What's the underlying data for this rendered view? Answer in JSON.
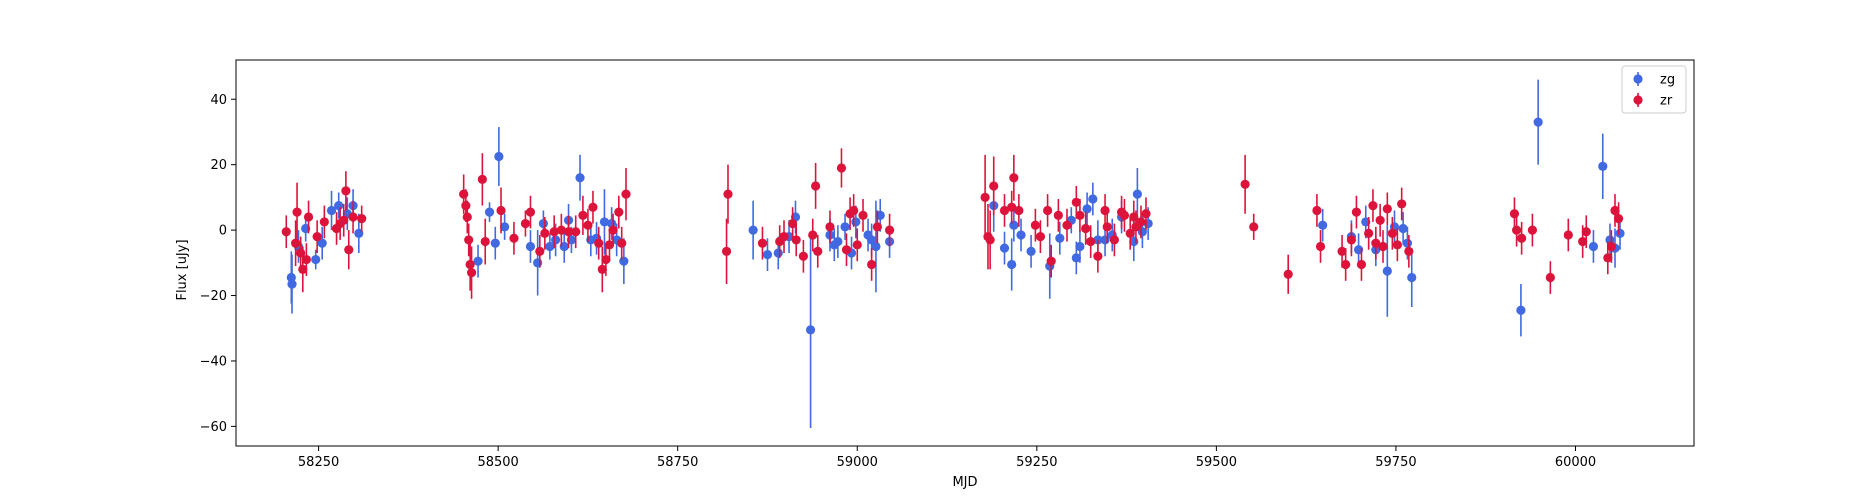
{
  "chart_data": {
    "type": "scatter",
    "xlabel": "MJD",
    "ylabel": "Flux [uJy]",
    "xlim": [
      58135,
      60165
    ],
    "ylim": [
      -66,
      52
    ],
    "xticks": [
      58250,
      58500,
      58750,
      59000,
      59250,
      59500,
      59750,
      60000
    ],
    "yticks": [
      -60,
      -40,
      -20,
      0,
      20,
      40
    ],
    "legend_position": "top-right",
    "grid": false,
    "error_bars": true,
    "series": [
      {
        "name": "zg",
        "color": "#4169e1",
        "points": [
          [
            58212,
            -14.5,
            8
          ],
          [
            58213,
            -16.5,
            9
          ],
          [
            58222,
            -5,
            5
          ],
          [
            58232,
            0.5,
            4
          ],
          [
            58246,
            -9,
            3
          ],
          [
            58255,
            -4,
            5
          ],
          [
            58268,
            6,
            6
          ],
          [
            58278,
            7.5,
            4
          ],
          [
            58290,
            5,
            5
          ],
          [
            58298,
            7.5,
            5
          ],
          [
            58306,
            -1,
            6
          ],
          [
            58472,
            -9.5,
            5
          ],
          [
            58488,
            5.5,
            3
          ],
          [
            58496,
            -4,
            5
          ],
          [
            58501,
            22.5,
            9
          ],
          [
            58509,
            1,
            4
          ],
          [
            58545,
            -5,
            5
          ],
          [
            58555,
            -10,
            10
          ],
          [
            58563,
            2,
            4
          ],
          [
            58572,
            -5,
            4
          ],
          [
            58580,
            -3,
            5
          ],
          [
            58592,
            -5,
            5
          ],
          [
            58598,
            3,
            5
          ],
          [
            58602,
            -3,
            4
          ],
          [
            58614,
            16,
            7
          ],
          [
            58629,
            -3,
            5
          ],
          [
            58637,
            -2.5,
            5
          ],
          [
            58648,
            2.5,
            10
          ],
          [
            58658,
            2,
            5
          ],
          [
            58665,
            -3,
            5
          ],
          [
            58675,
            -9.5,
            7
          ],
          [
            58855,
            0,
            9
          ],
          [
            58875,
            -7.5,
            5
          ],
          [
            58890,
            -7,
            5
          ],
          [
            58905,
            -2,
            5
          ],
          [
            58914,
            4,
            5
          ],
          [
            58935,
            -30.5,
            30
          ],
          [
            58962,
            -1.5,
            5
          ],
          [
            58968,
            -4.5,
            5
          ],
          [
            58973,
            -3.5,
            5
          ],
          [
            58983,
            1,
            4
          ],
          [
            58992,
            -7,
            5
          ],
          [
            58998,
            2.5,
            5
          ],
          [
            59015,
            -1.5,
            5
          ],
          [
            59020,
            -3,
            5
          ],
          [
            59026,
            -5,
            14
          ],
          [
            59032,
            4.5,
            5
          ],
          [
            59045,
            -3.5,
            5
          ],
          [
            59190,
            7.5,
            8
          ],
          [
            59205,
            -5.5,
            5
          ],
          [
            59215,
            -10.5,
            8
          ],
          [
            59218,
            1.5,
            5
          ],
          [
            59228,
            -1.5,
            5
          ],
          [
            59242,
            -6.5,
            5
          ],
          [
            59268,
            -11,
            10
          ],
          [
            59282,
            -2.5,
            5
          ],
          [
            59298,
            3,
            4
          ],
          [
            59305,
            -8.5,
            5
          ],
          [
            59310,
            -5,
            5
          ],
          [
            59320,
            6.5,
            5
          ],
          [
            59328,
            9.5,
            5
          ],
          [
            59335,
            -3,
            6
          ],
          [
            59345,
            -3,
            5
          ],
          [
            59355,
            -1.5,
            5
          ],
          [
            59368,
            4,
            5
          ],
          [
            59385,
            -3.5,
            6
          ],
          [
            59390,
            11,
            8
          ],
          [
            59397,
            -0.5,
            5
          ],
          [
            59405,
            2,
            5
          ],
          [
            59648,
            1.5,
            5
          ],
          [
            59688,
            -2,
            5
          ],
          [
            59698,
            -6,
            5
          ],
          [
            59708,
            2.5,
            5
          ],
          [
            59722,
            -6,
            5
          ],
          [
            59738,
            -12.5,
            14
          ],
          [
            59748,
            1,
            5
          ],
          [
            59760,
            0.5,
            5
          ],
          [
            59766,
            -4,
            5
          ],
          [
            59772,
            -14.5,
            9
          ],
          [
            59924,
            -24.5,
            8
          ],
          [
            59948,
            33,
            13
          ],
          [
            60025,
            -5,
            5
          ],
          [
            60038,
            19.5,
            10
          ],
          [
            60048,
            -3,
            5
          ],
          [
            60055,
            -5.5,
            6
          ],
          [
            60062,
            -1,
            5
          ]
        ]
      },
      {
        "name": "zr",
        "color": "#dc143c",
        "points": [
          [
            58205,
            -0.5,
            5
          ],
          [
            58218,
            -4,
            7
          ],
          [
            58220,
            5.5,
            9
          ],
          [
            58225,
            -7,
            5
          ],
          [
            58228,
            -12,
            7
          ],
          [
            58233,
            -9,
            5
          ],
          [
            58236,
            4,
            5
          ],
          [
            58248,
            -2,
            5
          ],
          [
            58258,
            2.5,
            5
          ],
          [
            58275,
            0.5,
            5
          ],
          [
            58280,
            2,
            5
          ],
          [
            58285,
            3,
            5
          ],
          [
            58288,
            12,
            6
          ],
          [
            58292,
            -6,
            6
          ],
          [
            58298,
            4,
            5
          ],
          [
            58310,
            3.5,
            4
          ],
          [
            58452,
            11,
            6
          ],
          [
            58455,
            7.5,
            5
          ],
          [
            58457,
            4,
            5
          ],
          [
            58459,
            -3,
            5
          ],
          [
            58461,
            -10.5,
            8
          ],
          [
            58463,
            -13,
            8
          ],
          [
            58478,
            15.5,
            8
          ],
          [
            58482,
            -3.5,
            7
          ],
          [
            58504,
            6,
            7
          ],
          [
            58522,
            -2.5,
            5
          ],
          [
            58538,
            2,
            4
          ],
          [
            58545,
            5.5,
            5
          ],
          [
            58558,
            -6.5,
            5
          ],
          [
            58565,
            -1,
            5
          ],
          [
            58578,
            -0.5,
            5
          ],
          [
            58588,
            0,
            5
          ],
          [
            58598,
            -0.5,
            5
          ],
          [
            58608,
            -0.5,
            5
          ],
          [
            58618,
            4.5,
            6
          ],
          [
            58625,
            1.5,
            5
          ],
          [
            58632,
            7,
            5
          ],
          [
            58640,
            -4,
            5
          ],
          [
            58645,
            -12,
            7
          ],
          [
            58650,
            -9,
            5
          ],
          [
            58655,
            -4.5,
            5
          ],
          [
            58660,
            0,
            5
          ],
          [
            58668,
            5.5,
            5
          ],
          [
            58672,
            -4,
            5
          ],
          [
            58678,
            11,
            8
          ],
          [
            58818,
            -6.5,
            10
          ],
          [
            58820,
            11,
            9
          ],
          [
            58868,
            -4,
            5
          ],
          [
            58892,
            -3.5,
            5
          ],
          [
            58898,
            -2,
            5
          ],
          [
            58910,
            2,
            5
          ],
          [
            58915,
            -3,
            5
          ],
          [
            58925,
            -8,
            5
          ],
          [
            58938,
            -1.5,
            5
          ],
          [
            58942,
            13.5,
            7
          ],
          [
            58945,
            -6.5,
            5
          ],
          [
            58962,
            1,
            5
          ],
          [
            58978,
            19,
            6
          ],
          [
            58985,
            -6,
            5
          ],
          [
            58990,
            5,
            5
          ],
          [
            58995,
            6,
            5
          ],
          [
            59000,
            -4.5,
            5
          ],
          [
            59008,
            4.5,
            5
          ],
          [
            59020,
            -10.5,
            5
          ],
          [
            59028,
            1,
            5
          ],
          [
            59045,
            0,
            5
          ],
          [
            59178,
            10,
            13
          ],
          [
            59182,
            -2,
            10
          ],
          [
            59185,
            -3,
            9
          ],
          [
            59190,
            13.5,
            9
          ],
          [
            59205,
            6,
            5
          ],
          [
            59215,
            7,
            5
          ],
          [
            59218,
            16,
            7
          ],
          [
            59225,
            6,
            5
          ],
          [
            59248,
            1.5,
            5
          ],
          [
            59255,
            -2,
            5
          ],
          [
            59265,
            6,
            5
          ],
          [
            59270,
            -9.5,
            5
          ],
          [
            59280,
            4.5,
            5
          ],
          [
            59292,
            1.5,
            5
          ],
          [
            59305,
            8.5,
            5
          ],
          [
            59310,
            4.5,
            5
          ],
          [
            59318,
            0.5,
            5
          ],
          [
            59325,
            -3.5,
            5
          ],
          [
            59335,
            -8,
            5
          ],
          [
            59345,
            6,
            5
          ],
          [
            59348,
            1,
            5
          ],
          [
            59358,
            -3,
            5
          ],
          [
            59368,
            5.5,
            5
          ],
          [
            59372,
            4.5,
            5
          ],
          [
            59380,
            -1,
            5
          ],
          [
            59385,
            4,
            5
          ],
          [
            59388,
            1,
            5
          ],
          [
            59395,
            2.5,
            5
          ],
          [
            59402,
            5,
            5
          ],
          [
            59540,
            14,
            9
          ],
          [
            59552,
            1,
            4
          ],
          [
            59600,
            -13.5,
            6
          ],
          [
            59640,
            6,
            5
          ],
          [
            59645,
            -5,
            5
          ],
          [
            59675,
            -6.5,
            5
          ],
          [
            59680,
            -10.5,
            5
          ],
          [
            59688,
            -3,
            5
          ],
          [
            59695,
            5.5,
            5
          ],
          [
            59702,
            -10.5,
            5
          ],
          [
            59712,
            -1,
            5
          ],
          [
            59718,
            7.5,
            5
          ],
          [
            59722,
            -4,
            5
          ],
          [
            59728,
            3,
            5
          ],
          [
            59732,
            -5,
            5
          ],
          [
            59738,
            6.5,
            5
          ],
          [
            59745,
            -1,
            5
          ],
          [
            59752,
            -4.5,
            5
          ],
          [
            59758,
            8,
            5
          ],
          [
            59768,
            -6.5,
            5
          ],
          [
            59915,
            5,
            5
          ],
          [
            59918,
            0,
            5
          ],
          [
            59925,
            -2.5,
            5
          ],
          [
            59940,
            0,
            5
          ],
          [
            59965,
            -14.5,
            5
          ],
          [
            59990,
            -1.5,
            5
          ],
          [
            60010,
            -3.5,
            5
          ],
          [
            60015,
            -0.5,
            5
          ],
          [
            60045,
            -8.5,
            5
          ],
          [
            60050,
            -5,
            5
          ],
          [
            60055,
            6,
            5
          ],
          [
            60060,
            3.5,
            5
          ]
        ]
      }
    ]
  }
}
